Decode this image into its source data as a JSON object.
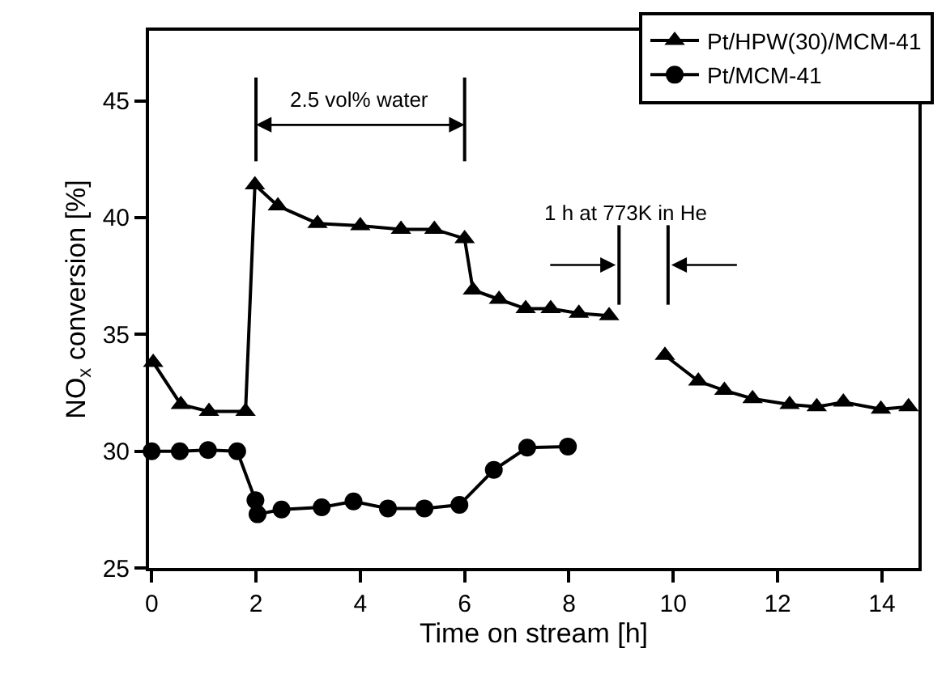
{
  "chart_data": {
    "type": "line",
    "xlabel": "Time on stream [h]",
    "ylabel": "NO$_{x}$ conversion [%]",
    "xlim": [
      -0.05,
      14.7
    ],
    "xticks": [
      0,
      2,
      4,
      6,
      8,
      10,
      12,
      14
    ],
    "ylim": [
      25,
      48
    ],
    "yticks": [
      25,
      30,
      35,
      40,
      45
    ],
    "legend": "top right",
    "line_style": "solid",
    "series": [
      {
        "name": "Pt/HPW(30)/MCM-41",
        "color": "#000000",
        "marker": "triangle",
        "x": [
          0.03,
          0.56,
          1.1,
          1.8,
          1.98,
          2.42,
          3.18,
          4.0,
          4.78,
          5.42,
          6.0,
          6.16,
          6.66,
          7.17,
          7.65,
          8.19,
          8.77,
          null,
          9.84,
          10.48,
          10.98,
          11.52,
          12.23,
          12.75,
          13.26,
          13.98,
          14.51
        ],
        "values": [
          33.8,
          32.0,
          31.7,
          31.7,
          41.4,
          40.5,
          39.75,
          39.65,
          39.5,
          39.5,
          39.1,
          36.9,
          36.5,
          36.1,
          36.1,
          35.9,
          35.8,
          null,
          34.1,
          33.0,
          32.6,
          32.25,
          32.0,
          31.9,
          32.1,
          31.8,
          31.9
        ]
      },
      {
        "name": "Pt/MCM-41",
        "color": "#000000",
        "marker": "circle",
        "x": [
          0.0,
          0.54,
          1.08,
          1.64,
          1.99,
          2.03,
          2.49,
          3.26,
          3.87,
          4.53,
          5.23,
          5.9,
          6.56,
          7.2,
          7.98
        ],
        "values": [
          30.0,
          30.0,
          30.05,
          30.0,
          27.9,
          27.3,
          27.5,
          27.6,
          27.85,
          27.55,
          27.55,
          27.7,
          29.2,
          30.15,
          30.2
        ]
      }
    ],
    "ref_lines": [
      {
        "axis": "x",
        "value": 2.0,
        "color": "#000000"
      },
      {
        "axis": "x",
        "value": 6.0,
        "color": "#000000"
      },
      {
        "axis": "x",
        "value": 8.96,
        "color": "#000000"
      },
      {
        "axis": "x",
        "value": 9.9,
        "color": "#000000"
      }
    ],
    "annotations": [
      "2.5 vol% water",
      "1 h at 773K in He"
    ]
  }
}
